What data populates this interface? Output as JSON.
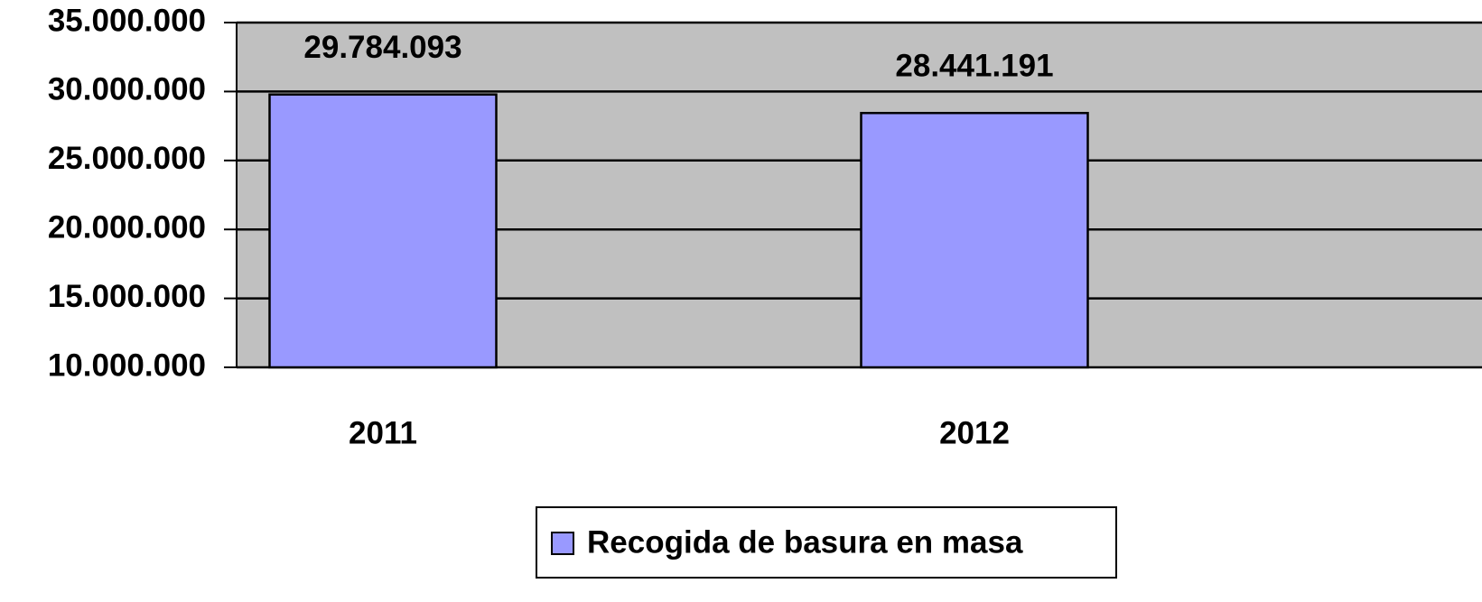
{
  "chart_data": {
    "type": "bar",
    "categories": [
      "2011",
      "2012"
    ],
    "series": [
      {
        "name": "Recogida de basura en masa",
        "color": "#9999ff",
        "values": [
          29784093,
          28441191
        ],
        "value_labels": [
          "29.784.093",
          "28.441.191"
        ]
      }
    ],
    "ylim": [
      10000000,
      35000000
    ],
    "yticks": [
      {
        "value": 10000000,
        "label": "10.000.000"
      },
      {
        "value": 15000000,
        "label": "15.000.000"
      },
      {
        "value": 20000000,
        "label": "20.000.000"
      },
      {
        "value": 25000000,
        "label": "25.000.000"
      },
      {
        "value": 30000000,
        "label": "30.000.000"
      },
      {
        "value": 35000000,
        "label": "35.000.000"
      }
    ],
    "grid": true,
    "legend": "bottom"
  }
}
